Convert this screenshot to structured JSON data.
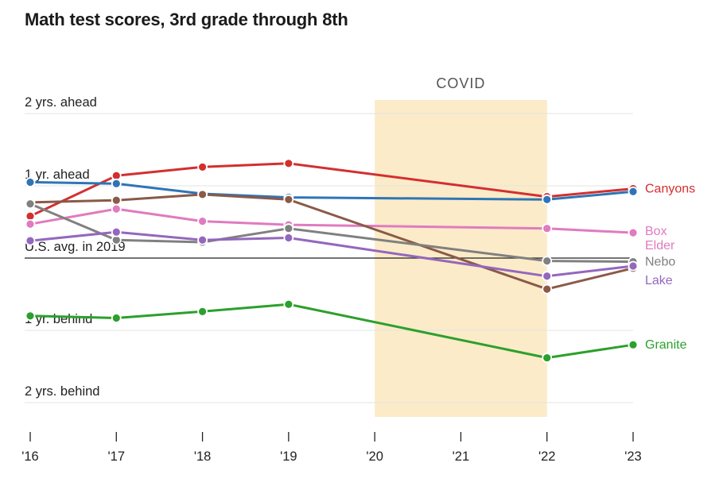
{
  "chart_data": {
    "type": "line",
    "title": "Math test scores, 3rd grade through 8th",
    "x_ticks": [
      "'16",
      "'17",
      "'18",
      "'19",
      "'20",
      "'21",
      "'22",
      "'23"
    ],
    "x_values": [
      2016,
      2017,
      2018,
      2019,
      2020,
      2021,
      2022,
      2023
    ],
    "y_ticks": [
      {
        "value": 2,
        "label": "2 yrs. ahead"
      },
      {
        "value": 1,
        "label": "1 yr. ahead"
      },
      {
        "value": 0,
        "label": "U.S. avg. in 2019"
      },
      {
        "value": -1,
        "label": "1 yr. behind"
      },
      {
        "value": -2,
        "label": "2 yrs. behind"
      }
    ],
    "ylim": [
      -2.2,
      2.1
    ],
    "shaded_region": {
      "label": "COVID",
      "x_start": 2020,
      "x_end": 2022,
      "color": "#fbebc8"
    },
    "series": [
      {
        "name": "Canyons",
        "label_lines": [
          "Canyons"
        ],
        "color": "#d32f2f",
        "points": [
          [
            2016,
            0.58
          ],
          [
            2017,
            1.14
          ],
          [
            2018,
            1.26
          ],
          [
            2019,
            1.31
          ],
          [
            2022,
            0.85
          ],
          [
            2023,
            0.96
          ]
        ]
      },
      {
        "name": "Blue district",
        "label_lines": [],
        "color": "#2e75b6",
        "points": [
          [
            2016,
            1.05
          ],
          [
            2017,
            1.03
          ],
          [
            2018,
            0.89
          ],
          [
            2019,
            0.84
          ],
          [
            2022,
            0.81
          ],
          [
            2023,
            0.92
          ]
        ]
      },
      {
        "name": "Box Elder",
        "label_lines": [
          "Box",
          "Elder"
        ],
        "color": "#e07bbf",
        "points": [
          [
            2016,
            0.47
          ],
          [
            2017,
            0.68
          ],
          [
            2018,
            0.51
          ],
          [
            2019,
            0.46
          ],
          [
            2022,
            0.41
          ],
          [
            2023,
            0.35
          ]
        ]
      },
      {
        "name": "Brown district",
        "label_lines": [],
        "color": "#8a5a48",
        "points": [
          [
            2016,
            0.77
          ],
          [
            2017,
            0.8
          ],
          [
            2018,
            0.88
          ],
          [
            2019,
            0.81
          ],
          [
            2022,
            -0.43
          ],
          [
            2023,
            -0.14
          ]
        ]
      },
      {
        "name": "Nebo",
        "label_lines": [
          "Nebo"
        ],
        "color": "#808080",
        "points": [
          [
            2016,
            0.75
          ],
          [
            2017,
            0.25
          ],
          [
            2018,
            0.22
          ],
          [
            2019,
            0.41
          ],
          [
            2022,
            -0.04
          ],
          [
            2023,
            -0.05
          ]
        ]
      },
      {
        "name": "Lake",
        "label_lines": [
          "Lake"
        ],
        "color": "#9467bd",
        "points": [
          [
            2016,
            0.24
          ],
          [
            2017,
            0.36
          ],
          [
            2018,
            0.25
          ],
          [
            2019,
            0.28
          ],
          [
            2022,
            -0.25
          ],
          [
            2023,
            -0.11
          ]
        ]
      },
      {
        "name": "Granite",
        "label_lines": [
          "Granite"
        ],
        "color": "#2ca02c",
        "points": [
          [
            2016,
            -0.8
          ],
          [
            2017,
            -0.83
          ],
          [
            2018,
            -0.74
          ],
          [
            2019,
            -0.64
          ],
          [
            2022,
            -1.38
          ],
          [
            2023,
            -1.2
          ]
        ]
      }
    ]
  }
}
